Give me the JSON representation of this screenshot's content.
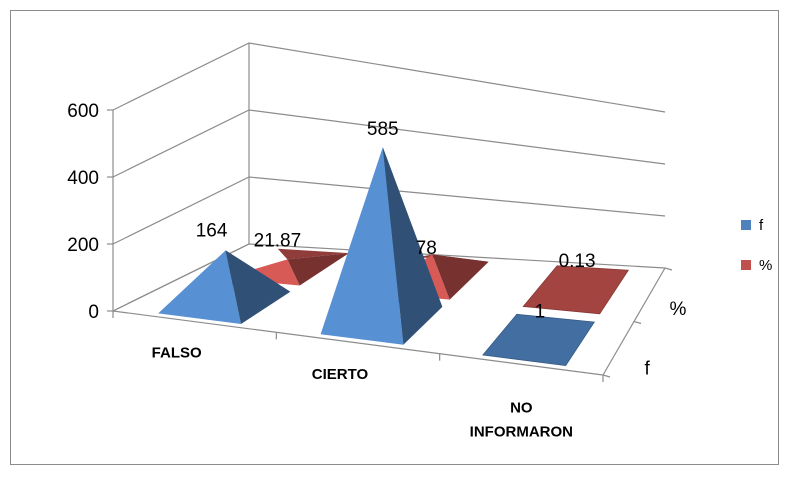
{
  "chart_data": {
    "type": "bar",
    "subtype": "3d-pyramid",
    "title": "",
    "xlabel": "",
    "ylabel": "",
    "categories": [
      "FALSO",
      "CIERTO",
      "NO INFORMARON"
    ],
    "category_lines": [
      [
        "FALSO"
      ],
      [
        "CIERTO"
      ],
      [
        "NO",
        "INFORMARON"
      ]
    ],
    "series": [
      {
        "name": "f",
        "values": [
          164,
          585,
          1
        ],
        "color": "#4f81bd"
      },
      {
        "name": "%",
        "values": [
          21.87,
          78,
          0.13
        ],
        "color": "#c0504d"
      }
    ],
    "data_labels": {
      "f": [
        "164",
        "585",
        "1"
      ],
      "%": [
        "21.87",
        "78",
        "0.13"
      ]
    },
    "y_ticks": [
      "0",
      "200",
      "400",
      "600"
    ],
    "ylim": [
      0,
      600
    ],
    "depth_labels": [
      "f",
      "%"
    ],
    "grid": true,
    "legend": {
      "position": "right",
      "items": [
        "f",
        "%"
      ]
    }
  }
}
